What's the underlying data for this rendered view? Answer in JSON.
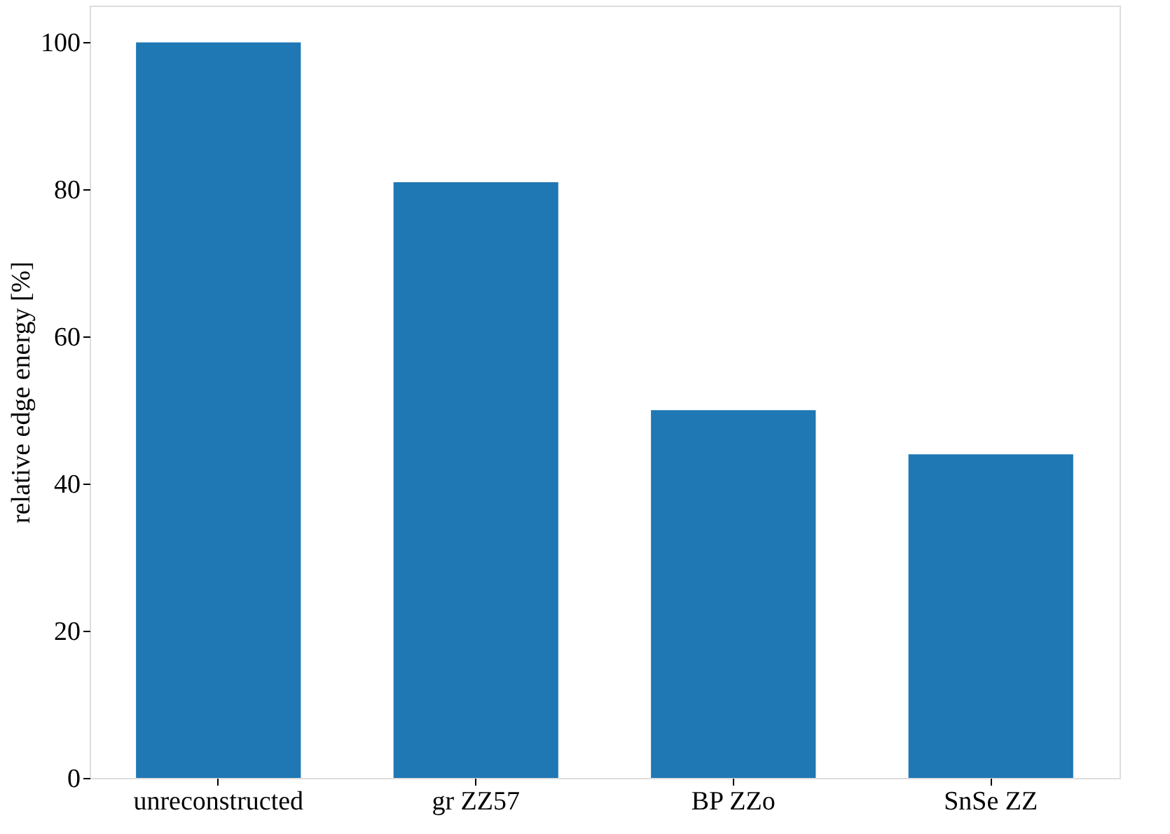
{
  "chart_data": {
    "type": "bar",
    "ylabel": "relative edge energy [%]",
    "categories": [
      "unreconstructed",
      "gr ZZ57",
      "BP ZZo",
      "SnSe ZZ"
    ],
    "values": [
      100,
      81,
      50,
      44
    ],
    "color": "#1f77b4",
    "ylim": [
      0,
      105
    ],
    "yticks": [
      0,
      20,
      40,
      60,
      80,
      100
    ],
    "grid": false
  }
}
